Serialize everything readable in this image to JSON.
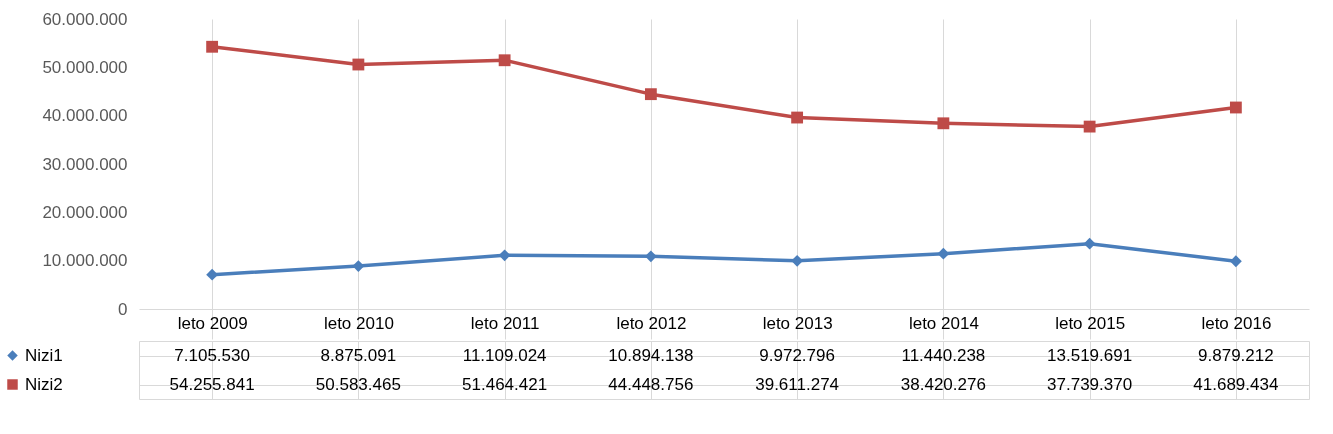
{
  "chart_data": {
    "type": "line",
    "categories": [
      "leto 2009",
      "leto 2010",
      "leto 2011",
      "leto 2012",
      "leto 2013",
      "leto 2014",
      "leto 2015",
      "leto 2016"
    ],
    "series": [
      {
        "name": "Nizi1",
        "color": "#4a7ebb",
        "marker": "diamond",
        "values": [
          7105530,
          8875091,
          11109024,
          10894138,
          9972796,
          11440238,
          13519691,
          9879212
        ],
        "value_labels": [
          "7.105.530",
          "8.875.091",
          "11.109.024",
          "10.894.138",
          "9.972.796",
          "11.440.238",
          "13.519.691",
          "9.879.212"
        ]
      },
      {
        "name": "Nizi2",
        "color": "#be4b48",
        "marker": "square",
        "values": [
          54255841,
          50583465,
          51464421,
          44448756,
          39611274,
          38420276,
          37739370,
          41689434
        ],
        "value_labels": [
          "54.255.841",
          "50.583.465",
          "51.464.421",
          "44.448.756",
          "39.611.274",
          "38.420.276",
          "37.739.370",
          "41.689.434"
        ]
      }
    ],
    "ylim": [
      0,
      60000000
    ],
    "yticks": [
      0,
      {
        "value": 10000000,
        "label": "10.000.000"
      },
      {
        "value": 20000000,
        "label": "20.000.000"
      },
      {
        "value": 30000000,
        "label": "30.000.000"
      },
      {
        "value": 40000000,
        "label": "40.000.000"
      },
      {
        "value": 50000000,
        "label": "50.000.000"
      },
      {
        "value": 60000000,
        "label": "60.000.000"
      }
    ],
    "grid": "x",
    "legend": "bottom left",
    "line_style": "solid"
  }
}
